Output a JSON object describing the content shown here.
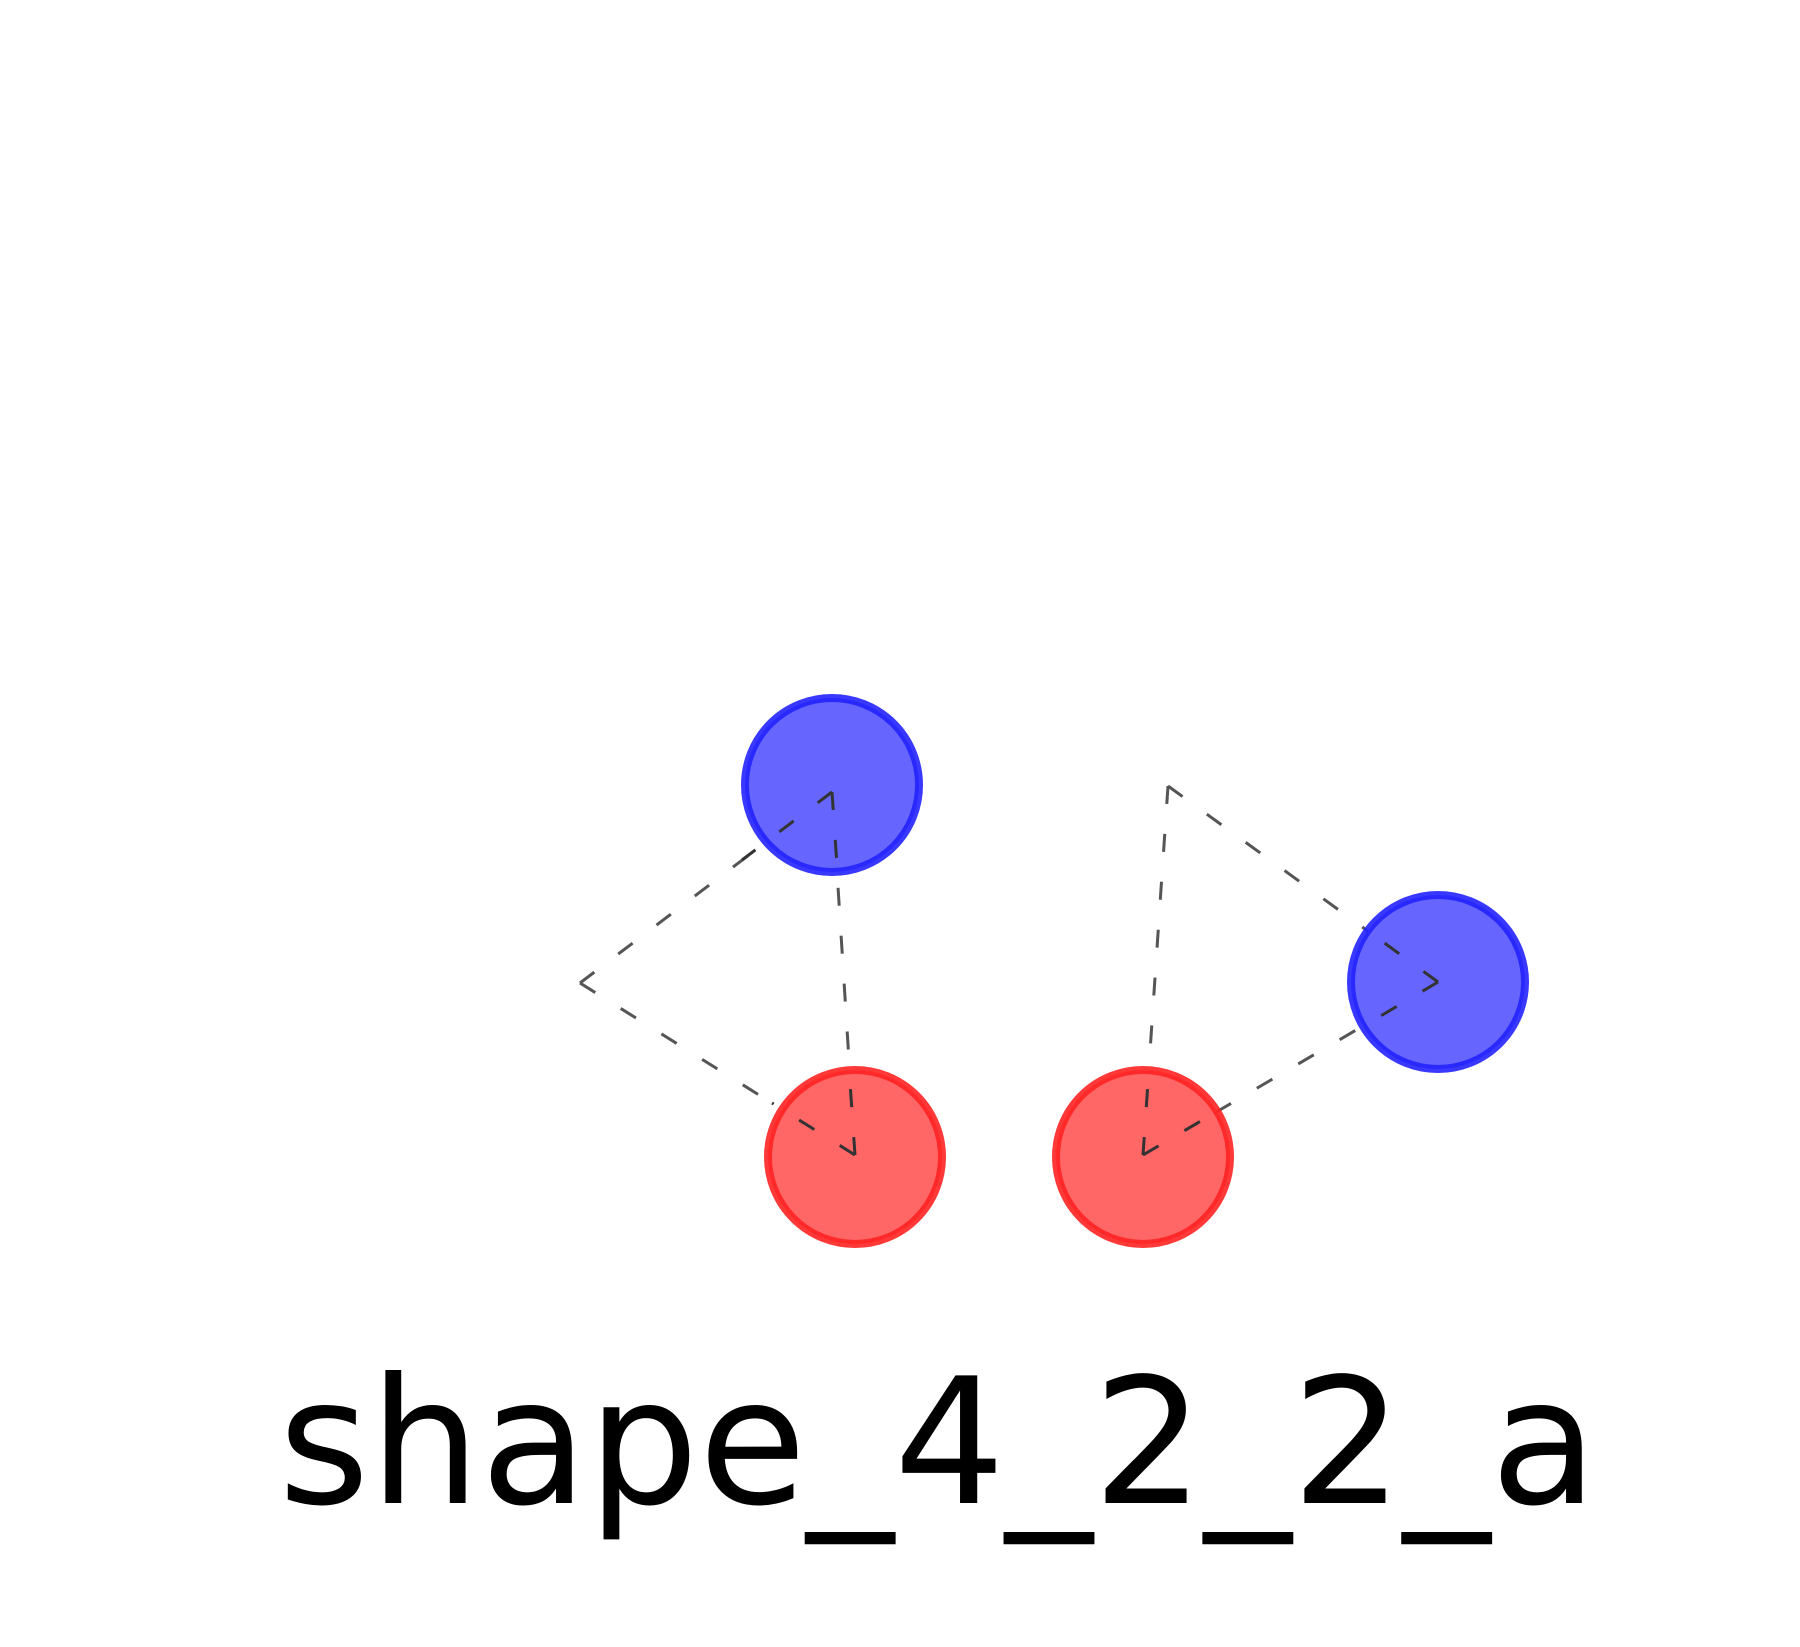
{
  "diagram": {
    "label": "shape_4_2_2_a",
    "colors": {
      "blue_fill": "#6666ff",
      "blue_stroke": "#2222ff",
      "red_fill": "#ff6666",
      "red_stroke": "#ff2222",
      "edge": "#555555",
      "background": "#ffffff"
    },
    "nodes": [
      {
        "id": "blue-node-1",
        "kind": "blue"
      },
      {
        "id": "red-node-1",
        "kind": "red"
      },
      {
        "id": "red-node-2",
        "kind": "red"
      },
      {
        "id": "blue-node-2",
        "kind": "blue"
      }
    ],
    "edge_style": "dashed"
  }
}
